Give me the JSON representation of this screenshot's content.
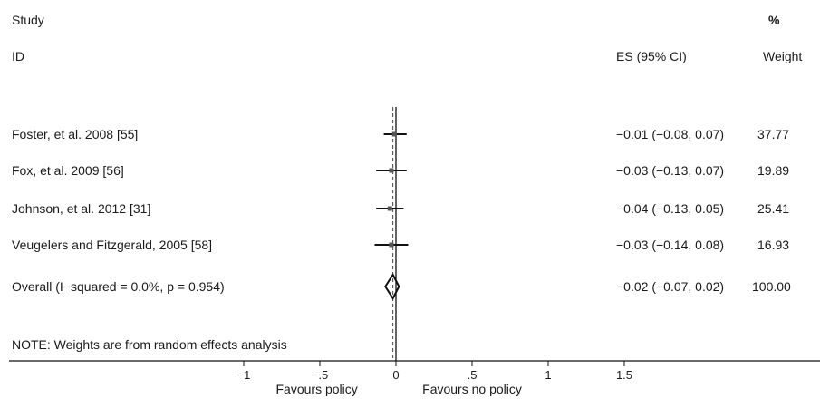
{
  "header": {
    "study_label": "Study",
    "id_label": "ID",
    "pct_label": "%",
    "es_label": "ES (95% CI)",
    "weight_label": "Weight"
  },
  "chart_data": {
    "type": "forest",
    "x_ticks": [
      "-1",
      "-.5",
      "0",
      ".5",
      "1",
      "1.5"
    ],
    "x_tick_values": [
      -1,
      -0.5,
      0,
      0.5,
      1,
      1.5
    ],
    "x_range": [
      -1.35,
      2.3
    ],
    "null_line": 0,
    "overall_line": -0.02,
    "studies": [
      {
        "label": "Foster, et al. 2008 [55]",
        "es": -0.01,
        "lo": -0.08,
        "hi": 0.07,
        "ci_text": "−0.01 (−0.08, 0.07)",
        "weight": "37.77"
      },
      {
        "label": "Fox, et al. 2009 [56]",
        "es": -0.03,
        "lo": -0.13,
        "hi": 0.07,
        "ci_text": "−0.03 (−0.13, 0.07)",
        "weight": "19.89"
      },
      {
        "label": "Johnson, et al. 2012 [31]",
        "es": -0.04,
        "lo": -0.13,
        "hi": 0.05,
        "ci_text": "−0.04 (−0.13, 0.05)",
        "weight": "25.41"
      },
      {
        "label": "Veugelers and Fitzgerald, 2005 [58]",
        "es": -0.03,
        "lo": -0.14,
        "hi": 0.08,
        "ci_text": "−0.03 (−0.14, 0.08)",
        "weight": "16.93"
      }
    ],
    "overall": {
      "label": "Overall  (I−squared = 0.0%, p = 0.954)",
      "es": -0.02,
      "lo": -0.07,
      "hi": 0.02,
      "ci_text": "−0.02 (−0.07, 0.02)",
      "weight": "100.00"
    },
    "note": "NOTE: Weights are from random effects analysis",
    "favours_left": "Favours policy",
    "favours_right": "Favours no policy"
  }
}
